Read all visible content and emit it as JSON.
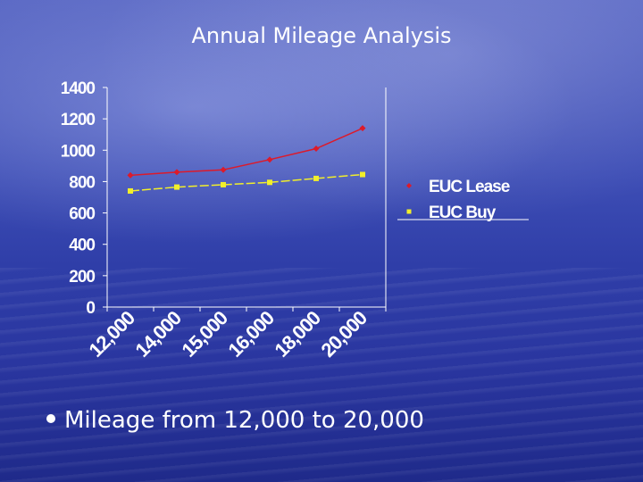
{
  "slide": {
    "title": "Annual Mileage Analysis",
    "bullet": "Mileage from 12,000 to 20,000"
  },
  "colors": {
    "lease": "#dd1a2a",
    "buy": "#f2ef2a",
    "axis": "#ffffff"
  },
  "chart_data": {
    "type": "line",
    "title": "",
    "xlabel": "",
    "ylabel": "",
    "categories": [
      "12,000",
      "14,000",
      "15,000",
      "16,000",
      "18,000",
      "20,000"
    ],
    "y_ticks": [
      "0",
      "200",
      "400",
      "600",
      "800",
      "1000",
      "1200",
      "1400"
    ],
    "ylim": [
      0,
      1400
    ],
    "grid": "horizontal tick marks only",
    "legend_position": "right",
    "series": [
      {
        "name": "EUC Lease",
        "values": [
          840,
          860,
          875,
          940,
          1010,
          1140
        ],
        "marker": "diamond",
        "color": "#dd1a2a"
      },
      {
        "name": "EUC Buy",
        "values": [
          740,
          765,
          780,
          795,
          820,
          845
        ],
        "marker": "square",
        "color": "#f2ef2a"
      }
    ]
  }
}
